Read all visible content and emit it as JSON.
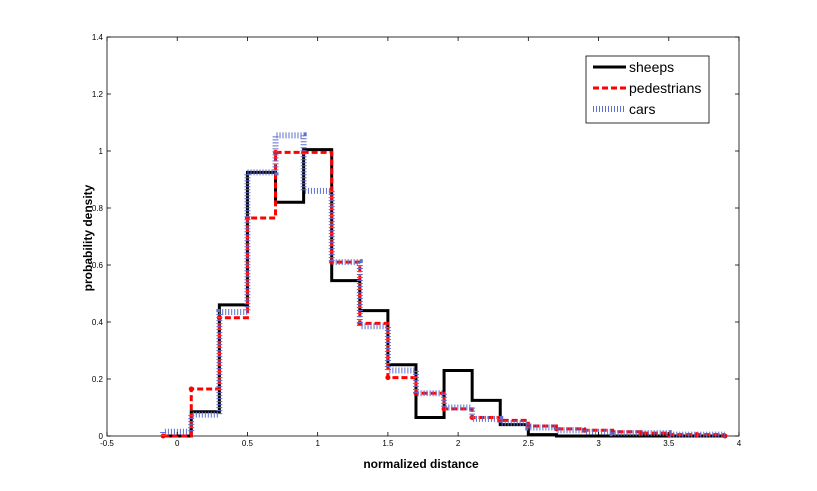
{
  "chart_data": {
    "type": "line",
    "style": "step",
    "title": "",
    "xlabel": "normalized distance",
    "ylabel": "probability density",
    "xlim": [
      -0.5,
      4
    ],
    "ylim": [
      0,
      1.4
    ],
    "xticks": [
      -0.5,
      0,
      0.5,
      1,
      1.5,
      2,
      2.5,
      3,
      3.5,
      4
    ],
    "yticks": [
      0,
      0.2,
      0.4,
      0.6,
      0.8,
      1,
      1.2,
      1.4
    ],
    "xtick_labels": [
      "-0.5",
      "0",
      "0.5",
      "1",
      "1.5",
      "2",
      "2.5",
      "3",
      "3.5",
      "4"
    ],
    "ytick_labels": [
      "0",
      "0.2",
      "0.4",
      "0.6",
      "0.8",
      "1",
      "1.2",
      "1.4"
    ],
    "grid": false,
    "legend_position": "top-right",
    "bin_edges": [
      -0.1,
      0.1,
      0.3,
      0.5,
      0.7,
      0.9,
      1.1,
      1.3,
      1.5,
      1.7,
      1.9,
      2.1,
      2.3,
      2.5,
      2.7,
      2.9,
      3.1,
      3.3,
      3.5,
      3.7,
      3.9
    ],
    "series": [
      {
        "name": "sheeps",
        "color": "#000000",
        "style": "solid",
        "values": [
          0,
          0.085,
          0.46,
          0.925,
          0.82,
          1.005,
          0.545,
          0.44,
          0.25,
          0.065,
          0.23,
          0.125,
          0.04,
          0.005,
          0,
          0,
          0,
          0,
          0,
          0
        ]
      },
      {
        "name": "pedestrians",
        "color": "#ff0000",
        "style": "dashed",
        "values": [
          0,
          0.165,
          0.415,
          0.765,
          0.995,
          0.995,
          0.61,
          0.395,
          0.205,
          0.15,
          0.095,
          0.065,
          0.055,
          0.035,
          0.025,
          0.02,
          0.015,
          0.01,
          0.005,
          0.005
        ]
      },
      {
        "name": "cars",
        "color": "#5f6fd0",
        "style": "dotted",
        "values": [
          0.015,
          0.075,
          0.435,
          0.925,
          1.055,
          0.86,
          0.61,
          0.385,
          0.23,
          0.15,
          0.1,
          0.06,
          0.045,
          0.03,
          0.02,
          0.015,
          0.01,
          0.01,
          0.005,
          0.005
        ]
      }
    ]
  }
}
